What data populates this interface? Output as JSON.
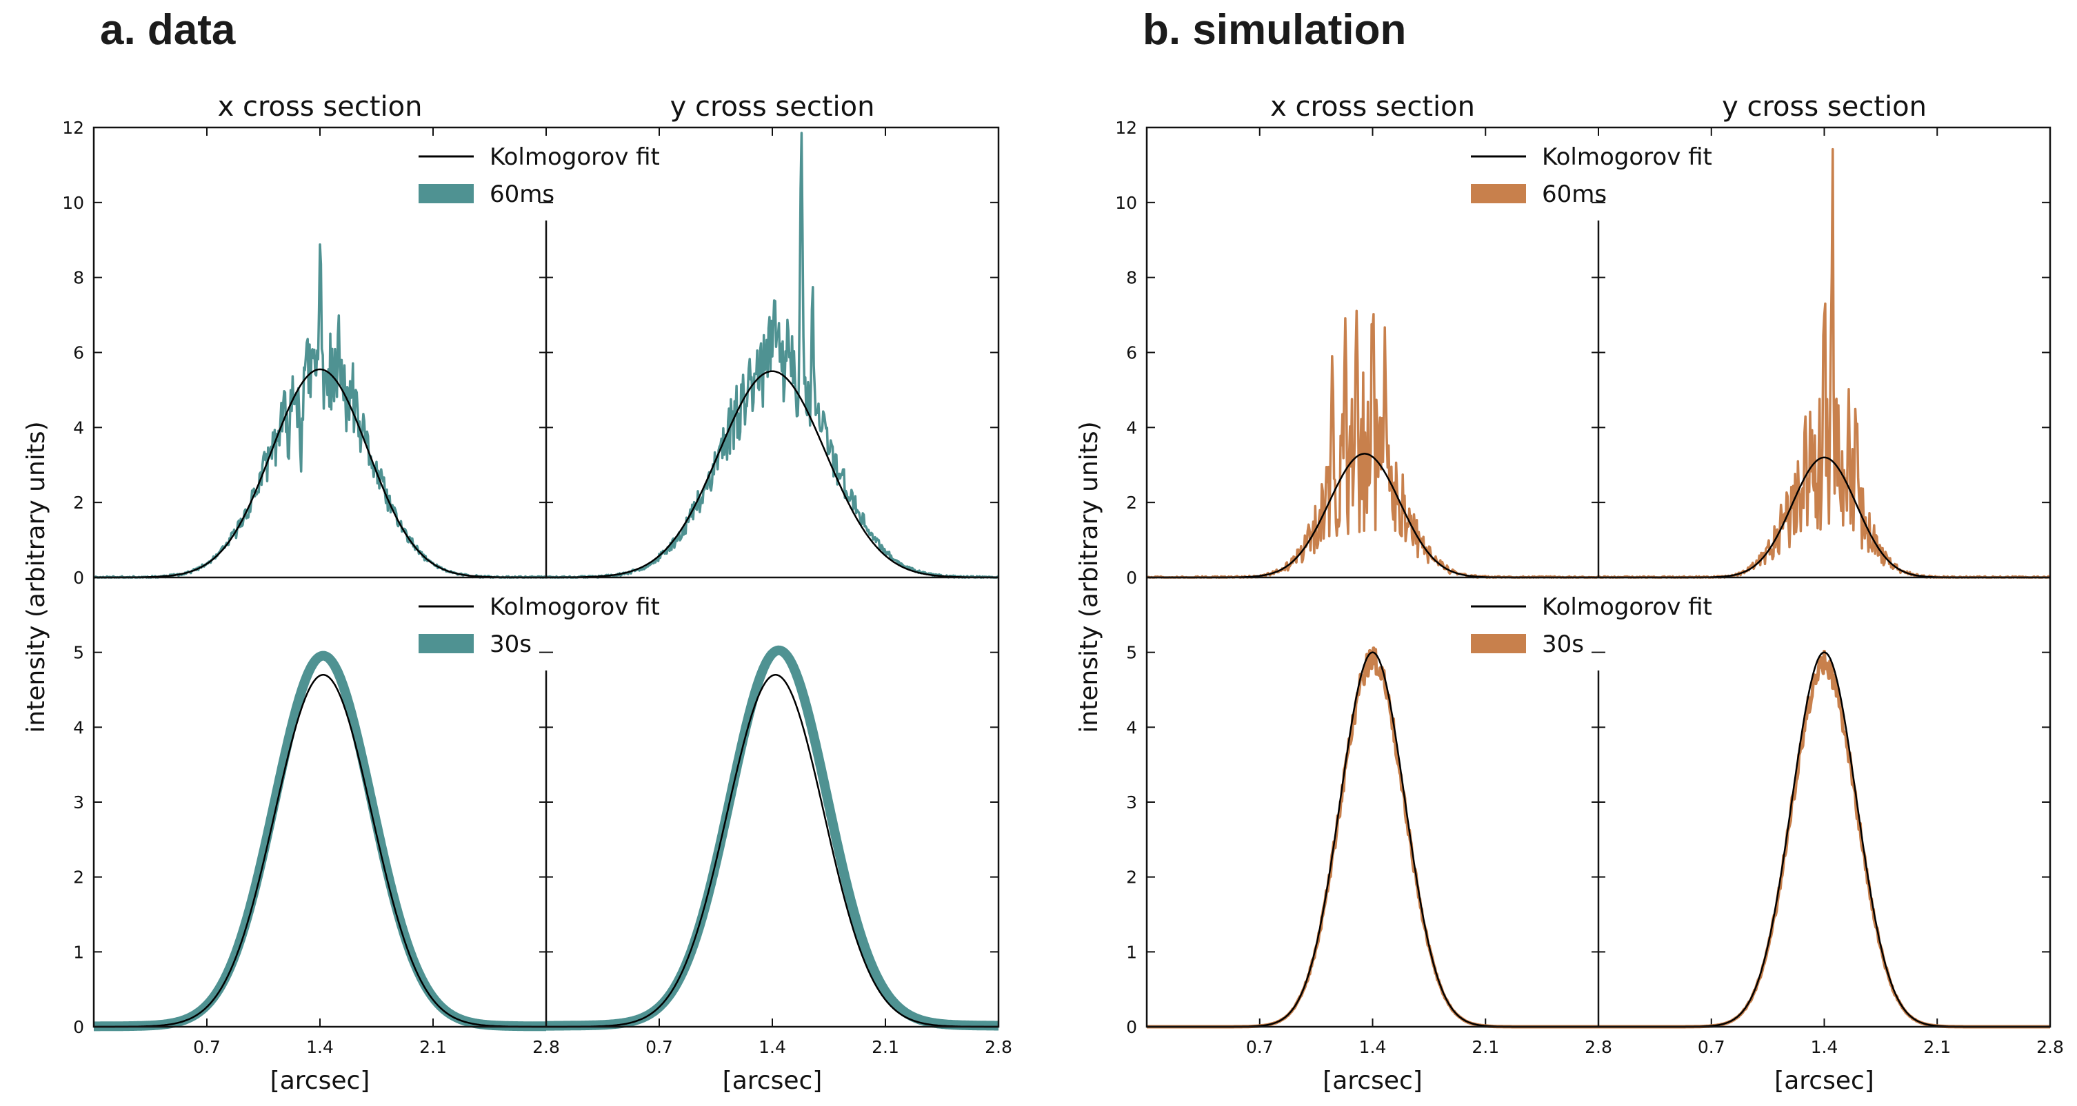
{
  "panels": {
    "a": {
      "title": "a. data"
    },
    "b": {
      "title": "b. simulation"
    }
  },
  "chart_data": [
    {
      "id": "a",
      "type": "line",
      "title": "a. data",
      "ylabel": "intensity (arbitrary units)",
      "xlabel": "[arcsec]",
      "color": "#4f9292",
      "fit_color": "#000000",
      "column_titles": [
        "x cross section",
        "y cross section"
      ],
      "xlim": [
        0,
        2.8
      ],
      "xticks": [
        "0.7",
        "1.4",
        "2.1",
        "2.8"
      ],
      "rows": [
        {
          "legend": {
            "fit": "Kolmogorov fit",
            "series": "60ms"
          },
          "ylim": [
            0,
            12
          ],
          "yticks": [
            0,
            2,
            4,
            6,
            8,
            10,
            12
          ],
          "style": "noisy",
          "subplots": [
            {
              "center": 1.4,
              "peak": 5.55,
              "sigma": 0.3,
              "obs_shift": 0.0,
              "obs_scale": 1.0,
              "spikes": [
                [
                  1.4,
                  8.7
                ],
                [
                  1.52,
                  6.4
                ],
                [
                  1.28,
                  3.3
                ],
                [
                  1.6,
                  5.2
                ],
                [
                  1.2,
                  3.4
                ]
              ],
              "noise": 1.1,
              "seed": 11
            },
            {
              "center": 1.4,
              "peak": 5.5,
              "sigma": 0.33,
              "obs_shift": 0.02,
              "obs_scale": 1.05,
              "spikes": [
                [
                  1.58,
                  10.9
                ],
                [
                  1.5,
                  7.2
                ],
                [
                  1.65,
                  7.0
                ],
                [
                  1.3,
                  6.4
                ],
                [
                  1.42,
                  6.8
                ]
              ],
              "noise": 1.2,
              "seed": 23
            }
          ]
        },
        {
          "legend": {
            "fit": "Kolmogorov fit",
            "series": "30s"
          },
          "ylim": [
            0,
            6
          ],
          "yticks": [
            0,
            1,
            2,
            3,
            4,
            5
          ],
          "style": "band",
          "subplots": [
            {
              "center": 1.42,
              "peak": 4.7,
              "sigma": 0.3,
              "obs_shift": 0.0,
              "obs_scale": 1.05,
              "tail": 0.08,
              "seed": 31
            },
            {
              "center": 1.42,
              "peak": 4.7,
              "sigma": 0.3,
              "obs_shift": 0.02,
              "obs_scale": 1.06,
              "tail": 0.18,
              "seed": 41
            }
          ]
        }
      ]
    },
    {
      "id": "b",
      "type": "line",
      "title": "b. simulation",
      "ylabel": "intensity (arbitrary units)",
      "xlabel": "[arcsec]",
      "color": "#c8804c",
      "fit_color": "#000000",
      "column_titles": [
        "x cross section",
        "y cross section"
      ],
      "xlim": [
        0,
        2.8
      ],
      "xticks": [
        "0.7",
        "1.4",
        "2.1",
        "2.8"
      ],
      "rows": [
        {
          "legend": {
            "fit": "Kolmogorov fit",
            "series": "60ms"
          },
          "ylim": [
            0,
            12
          ],
          "yticks": [
            0,
            2,
            4,
            6,
            8,
            10,
            12
          ],
          "style": "noisy",
          "subplots": [
            {
              "center": 1.35,
              "peak": 3.3,
              "sigma": 0.22,
              "obs_shift": 0.0,
              "obs_scale": 1.0,
              "spikes": [
                [
                  1.23,
                  7.5
                ],
                [
                  1.3,
                  7.2
                ],
                [
                  1.4,
                  6.8
                ],
                [
                  1.15,
                  6.3
                ],
                [
                  1.48,
                  5.6
                ]
              ],
              "noise": 2.2,
              "seed": 51
            },
            {
              "center": 1.4,
              "peak": 3.2,
              "sigma": 0.2,
              "obs_shift": 0.0,
              "obs_scale": 1.0,
              "spikes": [
                [
                  1.45,
                  10.2
                ],
                [
                  1.4,
                  7.3
                ],
                [
                  1.55,
                  5.2
                ],
                [
                  1.6,
                  5.0
                ],
                [
                  1.32,
                  3.6
                ]
              ],
              "noise": 2.0,
              "seed": 61
            }
          ]
        },
        {
          "legend": {
            "fit": "Kolmogorov fit",
            "series": "30s"
          },
          "ylim": [
            0,
            6
          ],
          "yticks": [
            0,
            1,
            2,
            3,
            4,
            5
          ],
          "style": "line",
          "subplots": [
            {
              "center": 1.4,
              "peak": 5.0,
              "sigma": 0.2,
              "obs_shift": 0.0,
              "obs_scale": 0.98,
              "tail": 0.0,
              "seed": 71
            },
            {
              "center": 1.4,
              "peak": 5.0,
              "sigma": 0.2,
              "obs_shift": 0.0,
              "obs_scale": 0.97,
              "tail": 0.0,
              "seed": 81
            }
          ]
        }
      ]
    }
  ]
}
